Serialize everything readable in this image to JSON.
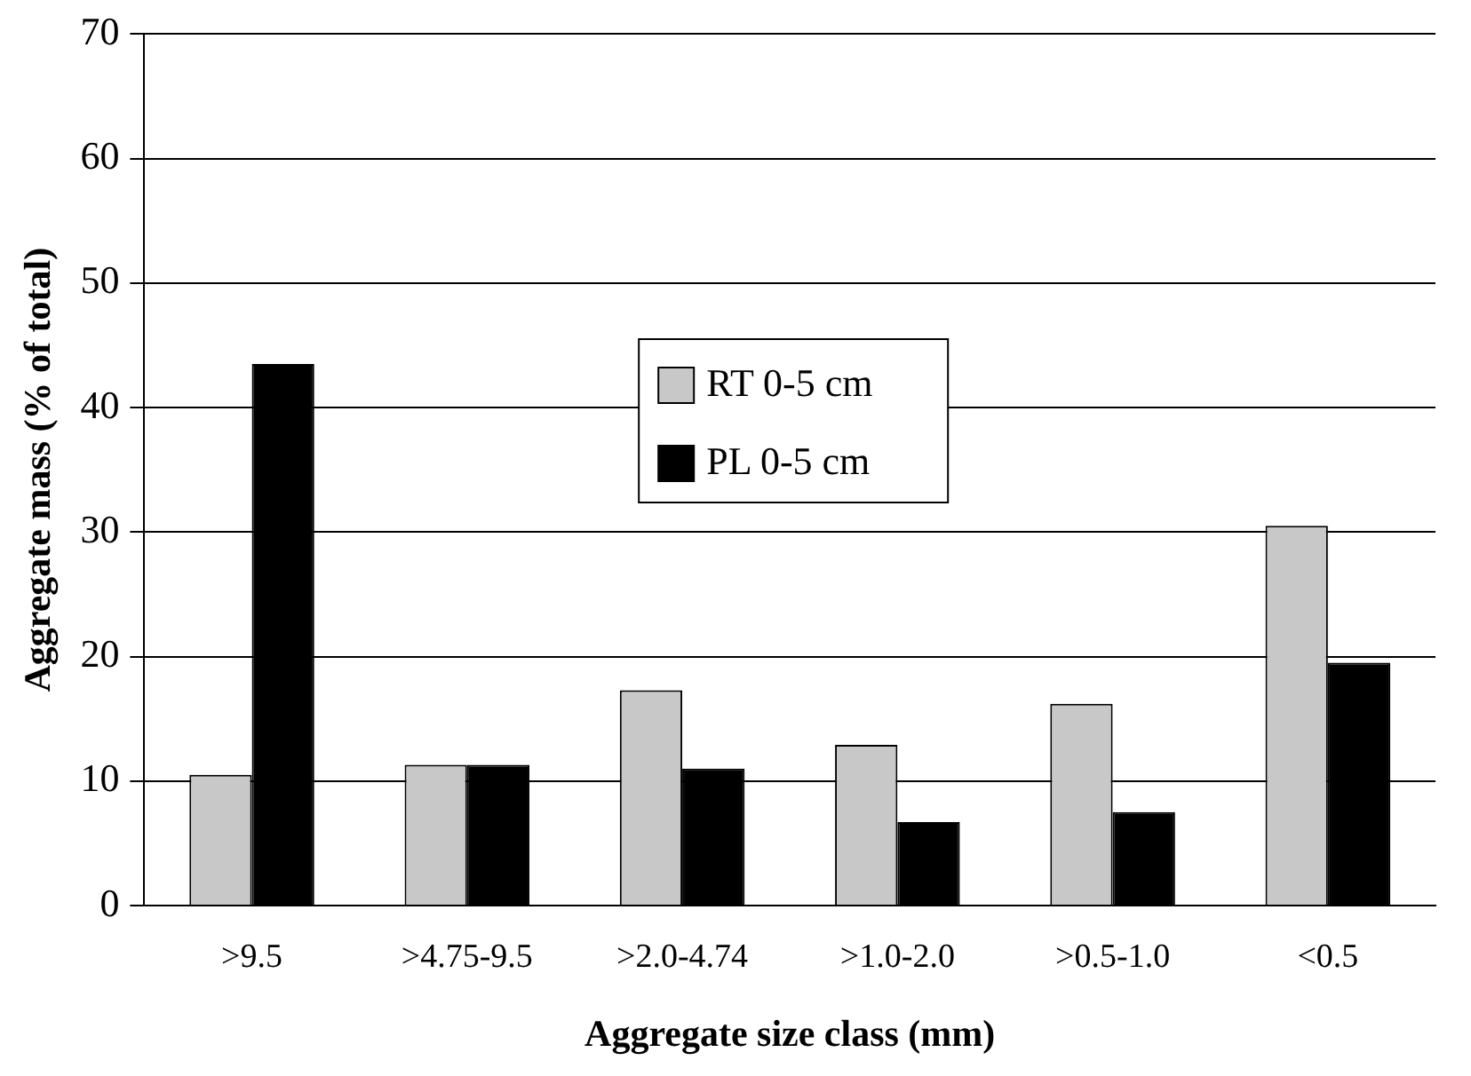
{
  "chart_data": {
    "type": "bar",
    "xlabel": "Aggregate size class (mm)",
    "ylabel": "Aggregate mass (% of total)",
    "categories": [
      ">9.5",
      ">4.75-9.5",
      ">2.0-4.74",
      ">1.0-2.0",
      ">0.5-1.0",
      "<0.5"
    ],
    "series": [
      {
        "name": "RT 0-5 cm",
        "color": "#c8c8c8",
        "values": [
          10.5,
          11.3,
          17.3,
          12.9,
          16.2,
          30.5
        ]
      },
      {
        "name": "PL 0-5 cm",
        "color": "#000000",
        "values": [
          43.5,
          11.3,
          11.0,
          6.7,
          7.5,
          19.5
        ]
      }
    ],
    "ylim": [
      0,
      70
    ],
    "yticks": [
      0,
      10,
      20,
      30,
      40,
      50,
      60,
      70
    ],
    "grid": "y",
    "legend": "center"
  }
}
